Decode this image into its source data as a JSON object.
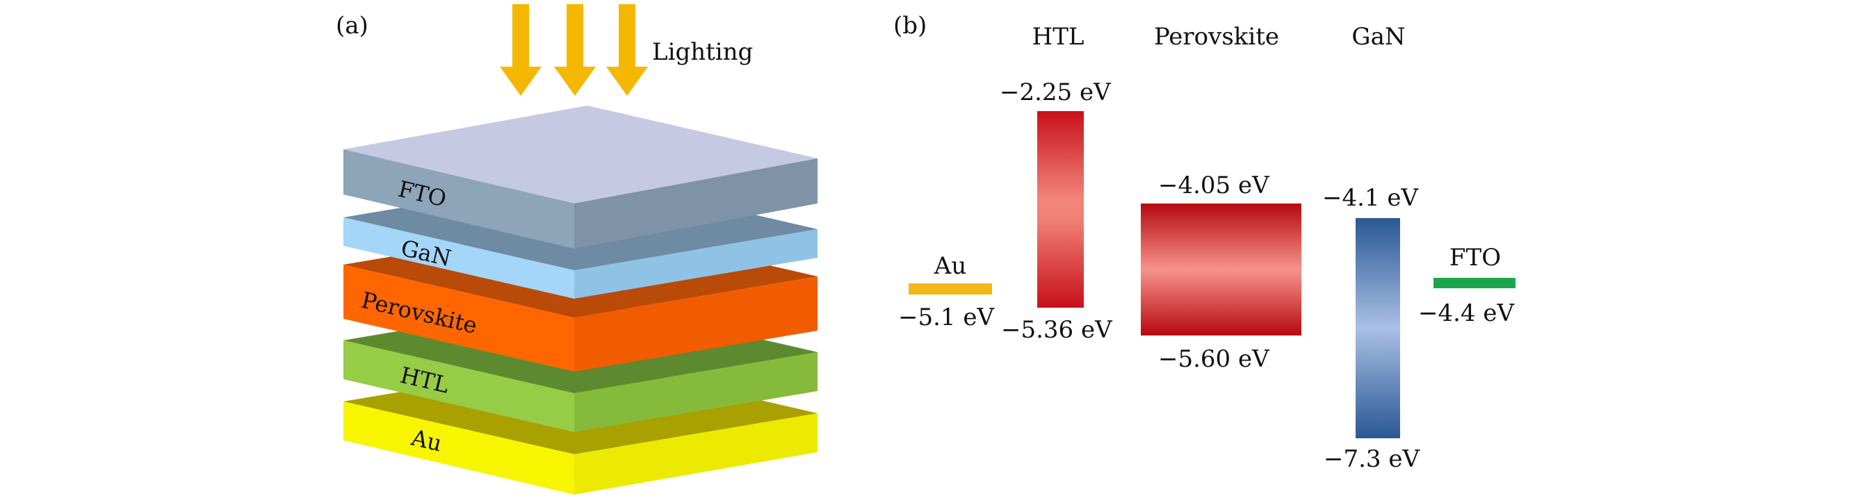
{
  "panel_a": {
    "label": "(a)",
    "lighting_label": "Lighting",
    "layers": [
      {
        "key": "fto",
        "label": "FTO",
        "top": "#c6c9e2",
        "front": "#8ea4b9",
        "side": "#7d93a8"
      },
      {
        "key": "gan",
        "label": "GaN",
        "top": "#6f8aa3",
        "front": "#a3d6f9",
        "side": "#8fc3e6"
      },
      {
        "key": "perovskite",
        "label": "Perovskite",
        "top": "#b94a08",
        "front": "#ff6600",
        "side": "#f05a00"
      },
      {
        "key": "htl",
        "label": "HTL",
        "top": "#5d8a2e",
        "front": "#97cc46",
        "side": "#86ba3a"
      },
      {
        "key": "au",
        "label": "Au",
        "top": "#a8a100",
        "front": "#f7f500",
        "side": "#e8e400"
      }
    ],
    "arrow_color": "#f5b800"
  },
  "panel_b": {
    "label": "(b)",
    "headers": {
      "htl": "HTL",
      "perovskite": "Perovskite",
      "gan": "GaN"
    },
    "levels": {
      "au": {
        "name": "Au",
        "value": "−5.1 eV",
        "color": "#f2b818"
      },
      "htl": {
        "top": "−2.25 eV",
        "bottom": "−5.36 eV",
        "color": "#d81a18"
      },
      "perovskite": {
        "top": "−4.05 eV",
        "bottom": "−5.60 eV",
        "color": "#c41515"
      },
      "gan": {
        "top": "−4.1 eV",
        "bottom": "−7.3 eV",
        "color": "#2c5b93"
      },
      "fto": {
        "name": "FTO",
        "value": "−4.4 eV",
        "color": "#1ca64c"
      }
    }
  }
}
